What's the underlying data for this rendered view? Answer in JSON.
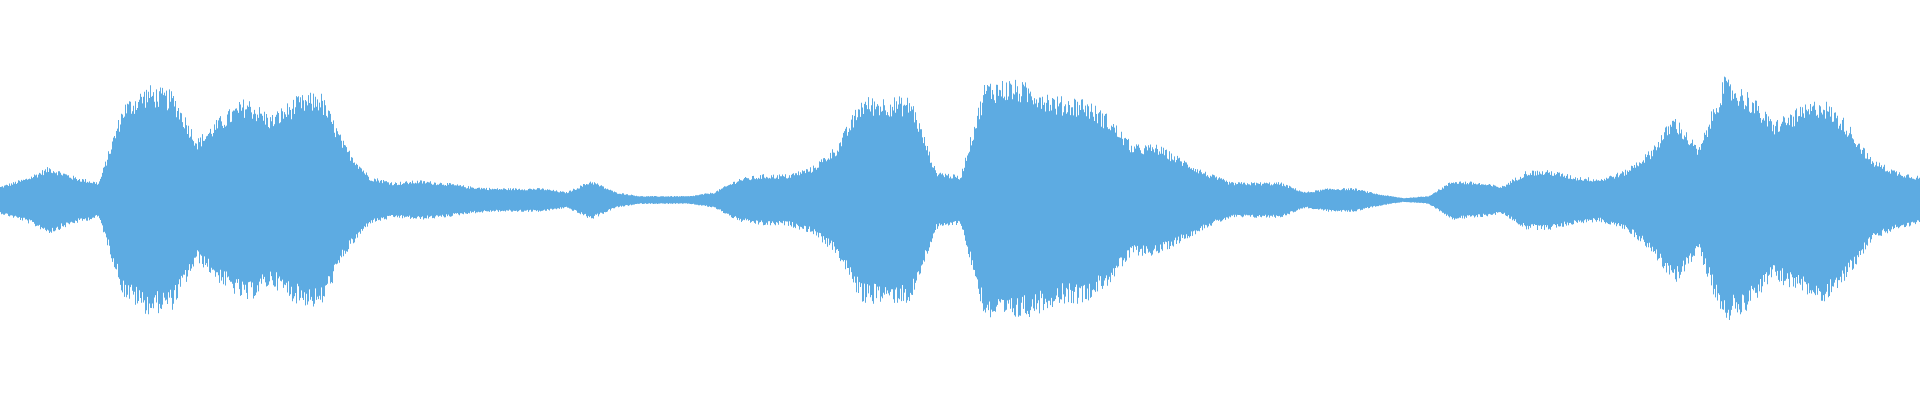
{
  "waveform": {
    "color": "#5dabe2",
    "background": "#ffffff",
    "amplitude_envelope": [
      0.07,
      0.11,
      0.17,
      0.12,
      0.09,
      0.49,
      0.58,
      0.55,
      0.31,
      0.43,
      0.52,
      0.43,
      0.52,
      0.55,
      0.28,
      0.12,
      0.09,
      0.1,
      0.09,
      0.07,
      0.06,
      0.06,
      0.06,
      0.04,
      0.1,
      0.04,
      0.02,
      0.02,
      0.02,
      0.04,
      0.11,
      0.13,
      0.13,
      0.17,
      0.28,
      0.52,
      0.52,
      0.52,
      0.15,
      0.12,
      0.6,
      0.61,
      0.58,
      0.52,
      0.52,
      0.43,
      0.28,
      0.28,
      0.21,
      0.14,
      0.09,
      0.09,
      0.09,
      0.04,
      0.06,
      0.06,
      0.03,
      0.01,
      0.02,
      0.1,
      0.09,
      0.07,
      0.15,
      0.15,
      0.12,
      0.11,
      0.15,
      0.25,
      0.43,
      0.26,
      0.62,
      0.55,
      0.4,
      0.46,
      0.52,
      0.4,
      0.21,
      0.15,
      0.12
    ]
  }
}
